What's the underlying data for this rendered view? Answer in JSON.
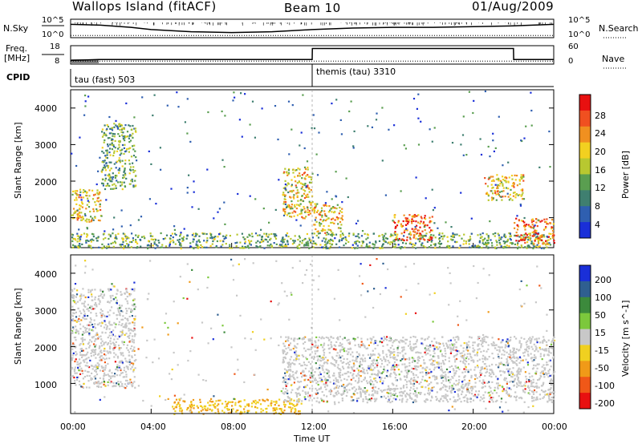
{
  "header": {
    "station": "Wallops Island (fitACF)",
    "beam": "Beam 10",
    "date": "01/Aug/2009"
  },
  "left_labels": {
    "nsky": "N.Sky",
    "freq_line1": "Freq.",
    "freq_line2": "[MHz]",
    "cpid": "CPID"
  },
  "right_labels": {
    "nsearch": "N.Search",
    "nave": "Nave"
  },
  "axes": {
    "noise_left_ticks": [
      "10^5",
      "10^0"
    ],
    "noise_right_ticks": [
      "10^5",
      "10^0"
    ],
    "freq_ticks": [
      "18",
      "8"
    ],
    "nave_ticks": [
      "60",
      "0"
    ],
    "range_ticks": [
      "4000",
      "3000",
      "2000",
      "1000"
    ],
    "range_label": "Slant Range [km]",
    "time_ticks": [
      "00:00",
      "04:00",
      "08:00",
      "12:00",
      "16:00",
      "20:00",
      "00:00"
    ],
    "time_label": "Time UT"
  },
  "cpid_modes": [
    {
      "label": "tau (fast) 503",
      "start_hour": 0,
      "end_hour": 12
    },
    {
      "label": "themis (tau) 3310",
      "start_hour": 12,
      "end_hour": 24
    }
  ],
  "colors": {
    "power": [
      "#1a2fd8",
      "#2f5fb0",
      "#3f7f70",
      "#5a9e50",
      "#b8c830",
      "#f2d020",
      "#f09020",
      "#f05020",
      "#e81010"
    ],
    "velocity": [
      "#1a2fd8",
      "#2f5f90",
      "#3c8a3c",
      "#7cc83c",
      "#c8c8c8",
      "#f0d020",
      "#f09a18",
      "#f05818",
      "#e81010"
    ]
  },
  "chart_data": [
    {
      "type": "line",
      "title": "N.Sky / N.Search",
      "x_unit": "hour UT",
      "x": [
        0,
        1.5,
        3,
        4,
        6,
        8,
        10,
        12,
        14,
        16,
        18,
        20,
        22,
        24
      ],
      "series": [
        {
          "name": "N.Sky",
          "log10_values": [
            3.6,
            3.4,
            2.8,
            2.2,
            1.6,
            1.4,
            1.6,
            2.2,
            2.6,
            2.8,
            2.8,
            3.0,
            3.2,
            3.6
          ]
        },
        {
          "name": "N.Search",
          "log10_values": [
            0.6,
            0.6,
            0.6,
            0.6,
            0.6,
            0.6,
            0.6,
            0.6,
            0.6,
            0.6,
            0.6,
            0.6,
            0.6,
            0.6
          ]
        }
      ],
      "ylim_log10": [
        0,
        5
      ]
    },
    {
      "type": "line",
      "title": "Freq / Nave",
      "x_unit": "hour UT",
      "x": [
        0,
        1.4,
        12,
        12.01,
        22,
        22.01,
        24
      ],
      "series": [
        {
          "name": "Freq. [MHz]",
          "values": [
            10,
            10.5,
            10.5,
            16.5,
            16.5,
            10.5,
            10.5
          ]
        },
        {
          "name": "Nave",
          "values": [
            10,
            10,
            10,
            10,
            10,
            10,
            10
          ]
        }
      ],
      "ylim_freq": [
        8,
        18
      ],
      "ylim_nave": [
        0,
        60
      ]
    },
    {
      "type": "heatmap",
      "title": "Power",
      "colorbar_label": "Power [dB]",
      "colorbar_ticks": [
        "28",
        "24",
        "20",
        "16",
        "12",
        "8",
        "4"
      ],
      "xlim_hours": [
        0,
        24
      ],
      "ylim_km": [
        180,
        4500
      ],
      "features": [
        {
          "t0": 0,
          "t1": 24,
          "r0": 180,
          "r1": 600,
          "level": "mid"
        },
        {
          "t0": 0,
          "t1": 1.5,
          "r0": 900,
          "r1": 1800,
          "level": "high"
        },
        {
          "t0": 1.5,
          "t1": 3.2,
          "r0": 1800,
          "r1": 3600,
          "level": "mid"
        },
        {
          "t0": 10.5,
          "t1": 12,
          "r0": 1000,
          "r1": 2400,
          "level": "high"
        },
        {
          "t0": 12,
          "t1": 13.5,
          "r0": 600,
          "r1": 1400,
          "level": "high"
        },
        {
          "t0": 16,
          "t1": 18,
          "r0": 400,
          "r1": 1100,
          "level": "peak"
        },
        {
          "t0": 22,
          "t1": 24,
          "r0": 300,
          "r1": 1000,
          "level": "peak"
        },
        {
          "t0": 20.5,
          "t1": 22.5,
          "r0": 1500,
          "r1": 2200,
          "level": "high"
        }
      ]
    },
    {
      "type": "heatmap",
      "title": "Velocity",
      "colorbar_label": "Velocity [m s^-1]",
      "colorbar_ticks": [
        "200",
        "100",
        "50",
        "15",
        "-15",
        "-50",
        "-100",
        "-200"
      ],
      "xlim_hours": [
        0,
        24
      ],
      "ylim_km": [
        180,
        4500
      ],
      "features": [
        {
          "t0": 5,
          "t1": 11.5,
          "r0": 180,
          "r1": 600,
          "level": "negative"
        },
        {
          "t0": 0,
          "t1": 3.2,
          "r0": 900,
          "r1": 3600,
          "level": "near-zero"
        },
        {
          "t0": 10.5,
          "t1": 24,
          "r0": 500,
          "r1": 2300,
          "level": "near-zero"
        }
      ]
    }
  ]
}
